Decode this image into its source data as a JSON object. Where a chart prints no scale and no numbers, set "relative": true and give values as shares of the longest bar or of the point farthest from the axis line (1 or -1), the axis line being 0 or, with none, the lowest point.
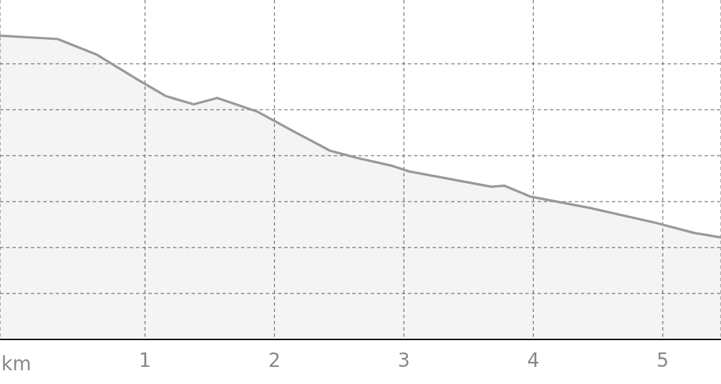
{
  "chart_data": {
    "type": "area",
    "relative": true,
    "xlabel": "km",
    "xlim": [
      -0.12,
      5.45
    ],
    "xticks": [
      1,
      2,
      3,
      4,
      5
    ],
    "grid": true,
    "line_style": "solid",
    "marker": "none",
    "series": [
      {
        "color": "#999999",
        "x": [
          -0.12,
          0.325,
          0.63,
          0.934,
          1.162,
          1.376,
          1.558,
          1.873,
          2.152,
          2.431,
          2.635,
          2.914,
          3.041,
          3.269,
          3.675,
          3.777,
          3.98,
          4.437,
          4.944,
          5.249,
          5.45
        ],
        "values": [
          1,
          0.989,
          0.937,
          0.858,
          0.801,
          0.774,
          0.795,
          0.749,
          0.684,
          0.621,
          0.598,
          0.571,
          0.553,
          0.535,
          0.503,
          0.506,
          0.47,
          0.433,
          0.384,
          0.35,
          0.336
        ]
      }
    ]
  }
}
